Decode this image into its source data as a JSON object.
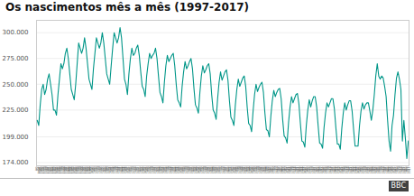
{
  "chart_data": {
    "type": "line",
    "title": "Os nascimentos mês a mês (1997-2017)",
    "annotations": [
      "BBC"
    ],
    "color": "#009688",
    "grid": true,
    "ylim": [
      171000,
      312000
    ],
    "yticks": [
      {
        "value": 174000,
        "label": "174.000"
      },
      {
        "value": 199000,
        "label": "199.000"
      },
      {
        "value": 225000,
        "label": "225.000"
      },
      {
        "value": 250000,
        "label": "250.000"
      },
      {
        "value": 275000,
        "label": "275.000"
      },
      {
        "value": 300000,
        "label": "300.000"
      }
    ],
    "categories": [
      "jan\n1997",
      "fev\n1997",
      "mar\n1997",
      "abr\n1997",
      "mai\n1997",
      "jun\n1997",
      "jul\n1997",
      "ago\n1997",
      "set\n1997",
      "out\n1997",
      "nov\n1997",
      "dez\n1997",
      "jan\n1998",
      "fev\n1998",
      "mar\n1998",
      "abr\n1998",
      "mai\n1998",
      "jun\n1998",
      "jul\n1998",
      "ago\n1998",
      "set\n1998",
      "out\n1998",
      "nov\n1998",
      "dez\n1998",
      "jan\n1999",
      "fev\n1999",
      "mar\n1999",
      "abr\n1999",
      "mai\n1999",
      "jun\n1999",
      "jul\n1999",
      "ago\n1999",
      "set\n1999",
      "out\n1999",
      "nov\n1999",
      "dez\n1999",
      "jan\n2000",
      "fev\n2000",
      "mar\n2000",
      "abr\n2000",
      "mai\n2000",
      "jun\n2000",
      "jul\n2000",
      "ago\n2000",
      "set\n2000",
      "out\n2000",
      "nov\n2000",
      "dez\n2000",
      "jan\n2001",
      "fev\n2001",
      "mar\n2001",
      "abr\n2001",
      "mai\n2001",
      "jun\n2001",
      "jul\n2001",
      "ago\n2001",
      "set\n2001",
      "out\n2001",
      "nov\n2001",
      "dez\n2001",
      "jan\n2002",
      "fev\n2002",
      "mar\n2002",
      "abr\n2002",
      "mai\n2002",
      "jun\n2002",
      "jul\n2002",
      "ago\n2002",
      "set\n2002",
      "out\n2002",
      "nov\n2002",
      "dez\n2002",
      "jan\n2003",
      "fev\n2003",
      "mar\n2003",
      "abr\n2003",
      "mai\n2003",
      "jun\n2003",
      "jul\n2003",
      "ago\n2003",
      "set\n2003",
      "out\n2003",
      "nov\n2003",
      "dez\n2003",
      "jan\n2004",
      "fev\n2004",
      "mar\n2004",
      "abr\n2004",
      "mai\n2004",
      "jun\n2004",
      "jul\n2004",
      "ago\n2004",
      "set\n2004",
      "out\n2004",
      "nov\n2004",
      "dez\n2004",
      "jan\n2005",
      "fev\n2005",
      "mar\n2005",
      "abr\n2005",
      "mai\n2005",
      "jun\n2005",
      "jul\n2005",
      "ago\n2005",
      "set\n2005",
      "out\n2005",
      "nov\n2005",
      "dez\n2005",
      "jan\n2006",
      "fev\n2006",
      "mar\n2006",
      "abr\n2006",
      "mai\n2006",
      "jun\n2006",
      "jul\n2006",
      "ago\n2006",
      "set\n2006",
      "out\n2006",
      "nov\n2006",
      "dez\n2006",
      "jan\n2007",
      "fev\n2007",
      "mar\n2007",
      "abr\n2007",
      "mai\n2007",
      "jun\n2007",
      "jul\n2007",
      "ago\n2007",
      "set\n2007",
      "out\n2007",
      "nov\n2007",
      "dez\n2007",
      "jan\n2008",
      "fev\n2008",
      "mar\n2008",
      "abr\n2008",
      "mai\n2008",
      "jun\n2008",
      "jul\n2008",
      "ago\n2008",
      "set\n2008",
      "out\n2008",
      "nov\n2008",
      "dez\n2008",
      "jan\n2009",
      "fev\n2009",
      "mar\n2009",
      "abr\n2009",
      "mai\n2009",
      "jun\n2009",
      "jul\n2009",
      "ago\n2009",
      "set\n2009",
      "out\n2009",
      "nov\n2009",
      "dez\n2009",
      "jan\n2010",
      "fev\n2010",
      "mar\n2010",
      "abr\n2010",
      "mai\n2010",
      "jun\n2010",
      "jul\n2010",
      "ago\n2010",
      "set\n2010",
      "out\n2010",
      "nov\n2010",
      "dez\n2010",
      "jan\n2011",
      "fev\n2011",
      "mar\n2011",
      "abr\n2011",
      "mai\n2011",
      "jun\n2011",
      "jul\n2011",
      "ago\n2011",
      "set\n2011",
      "out\n2011",
      "nov\n2011",
      "dez\n2011",
      "jan\n2012",
      "fev\n2012",
      "mar\n2012",
      "abr\n2012",
      "mai\n2012",
      "jun\n2012",
      "jul\n2012",
      "ago\n2012",
      "set\n2012",
      "out\n2012",
      "nov\n2012",
      "dez\n2012",
      "jan\n2013",
      "fev\n2013",
      "mar\n2013",
      "abr\n2013",
      "mai\n2013",
      "jun\n2013",
      "jul\n2013",
      "ago\n2013",
      "set\n2013",
      "out\n2013",
      "nov\n2013",
      "dez\n2013",
      "jan\n2014",
      "fev\n2014",
      "mar\n2014",
      "abr\n2014",
      "mai\n2014",
      "jun\n2014",
      "jul\n2014",
      "ago\n2014",
      "set\n2014",
      "out\n2014",
      "nov\n2014",
      "dez\n2014",
      "jan\n2015",
      "fev\n2015",
      "mar\n2015",
      "abr\n2015",
      "mai\n2015",
      "jun\n2015",
      "jul\n2015",
      "ago\n2015",
      "set\n2015",
      "out\n2015",
      "nov\n2015",
      "dez\n2015",
      "jan\n2016",
      "fev\n2016",
      "mar\n2016",
      "abr\n2016",
      "mai\n2016",
      "jun\n2016",
      "jul\n2016",
      "ago\n2016",
      "set\n2016",
      "out\n2016",
      "nov\n2016",
      "dez\n2016",
      "jan\n2017",
      "fev\n2017",
      "mar\n2017",
      "abr\n2017",
      "mai\n2017",
      "jun\n2017",
      "jul\n2017",
      "ago\n2017",
      "set\n2017",
      "out\n2017",
      "nov\n2017",
      "dez\n2017"
    ],
    "values": [
      215000,
      210000,
      230000,
      245000,
      250000,
      240000,
      245000,
      255000,
      260000,
      250000,
      240000,
      225000,
      225000,
      220000,
      240000,
      255000,
      270000,
      265000,
      270000,
      280000,
      285000,
      275000,
      260000,
      245000,
      240000,
      235000,
      250000,
      270000,
      290000,
      285000,
      280000,
      285000,
      295000,
      285000,
      270000,
      255000,
      250000,
      245000,
      265000,
      280000,
      295000,
      290000,
      285000,
      290000,
      300000,
      290000,
      275000,
      260000,
      255000,
      250000,
      268000,
      285000,
      300000,
      295000,
      290000,
      295000,
      305000,
      295000,
      275000,
      255000,
      250000,
      240000,
      260000,
      275000,
      285000,
      278000,
      280000,
      285000,
      288000,
      278000,
      262000,
      248000,
      245000,
      238000,
      258000,
      270000,
      280000,
      275000,
      278000,
      280000,
      285000,
      275000,
      258000,
      242000,
      238000,
      232000,
      252000,
      268000,
      278000,
      272000,
      275000,
      278000,
      280000,
      268000,
      250000,
      235000,
      232000,
      228000,
      248000,
      262000,
      272000,
      265000,
      268000,
      272000,
      275000,
      265000,
      246000,
      230000,
      227000,
      222000,
      242000,
      258000,
      268000,
      261000,
      264000,
      268000,
      270000,
      260000,
      240000,
      225000,
      222000,
      216000,
      236000,
      252000,
      262000,
      254000,
      258000,
      262000,
      264000,
      254000,
      234000,
      218000,
      215000,
      210000,
      230000,
      245000,
      255000,
      248000,
      252000,
      256000,
      258000,
      248000,
      228000,
      212000,
      210000,
      204000,
      224000,
      240000,
      250000,
      243000,
      247000,
      250000,
      252000,
      242000,
      222000,
      206000,
      205000,
      199000,
      219000,
      234000,
      244000,
      238000,
      242000,
      245000,
      246000,
      236000,
      216000,
      200000,
      198000,
      193000,
      213000,
      228000,
      238000,
      232000,
      236000,
      240000,
      241000,
      231000,
      212000,
      195000,
      194000,
      189000,
      210000,
      225000,
      235000,
      228000,
      234000,
      238000,
      238000,
      228000,
      210000,
      193000,
      192000,
      188000,
      208000,
      222000,
      232000,
      228000,
      232000,
      236000,
      236000,
      226000,
      208000,
      192000,
      192000,
      187000,
      207000,
      222000,
      232000,
      225000,
      230000,
      234000,
      234000,
      224000,
      206000,
      190000,
      190000,
      190000,
      210000,
      224000,
      232000,
      226000,
      230000,
      232000,
      232000,
      224000,
      215000,
      225000,
      240000,
      258000,
      270000,
      258000,
      255000,
      258000,
      256000,
      248000,
      238000,
      215000,
      195000,
      185000,
      210000,
      220000,
      240000,
      256000,
      262000,
      255000,
      245000,
      195000,
      215000,
      198000,
      178000,
      195000
    ]
  }
}
